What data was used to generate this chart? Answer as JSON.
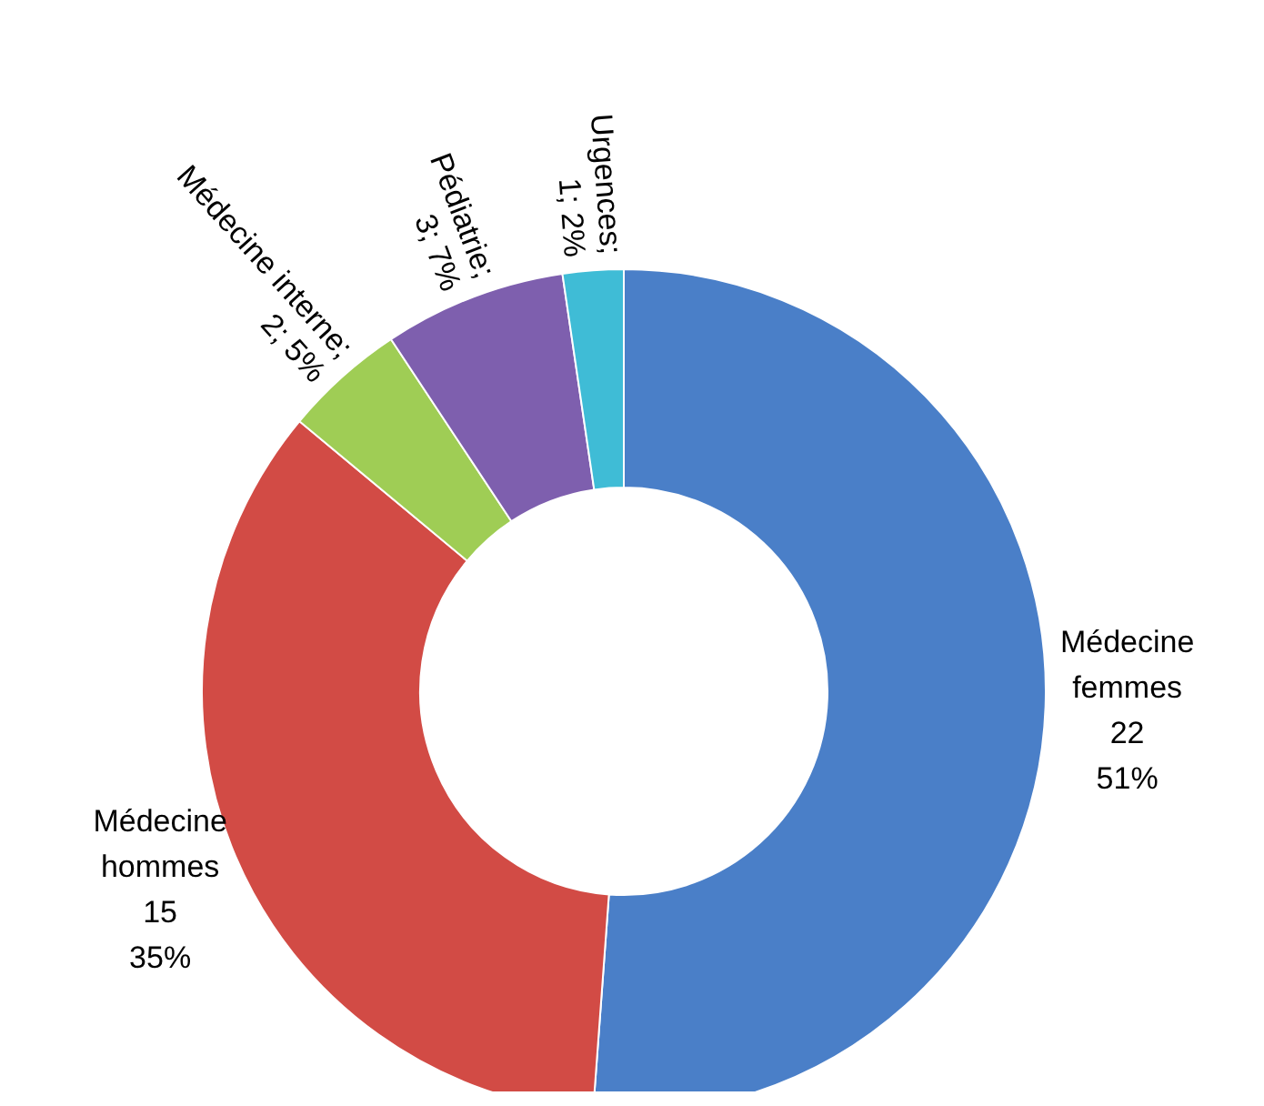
{
  "chart_data": {
    "type": "donut",
    "categories": [
      "Médecine femmes",
      "Médecine hommes",
      "Médecine interne",
      "Pédiatrie",
      "Urgences"
    ],
    "values": [
      22,
      15,
      2,
      3,
      1
    ],
    "colors": [
      "#4a7fc8",
      "#d24b45",
      "#9fcd55",
      "#7e5fae",
      "#3fbcd6"
    ],
    "value_labels": [
      "\n22\n51%",
      "\n15\n35%",
      ";\n2; 5%",
      ";\n3; 7%",
      ";\n1; 2%"
    ],
    "legend": false
  }
}
